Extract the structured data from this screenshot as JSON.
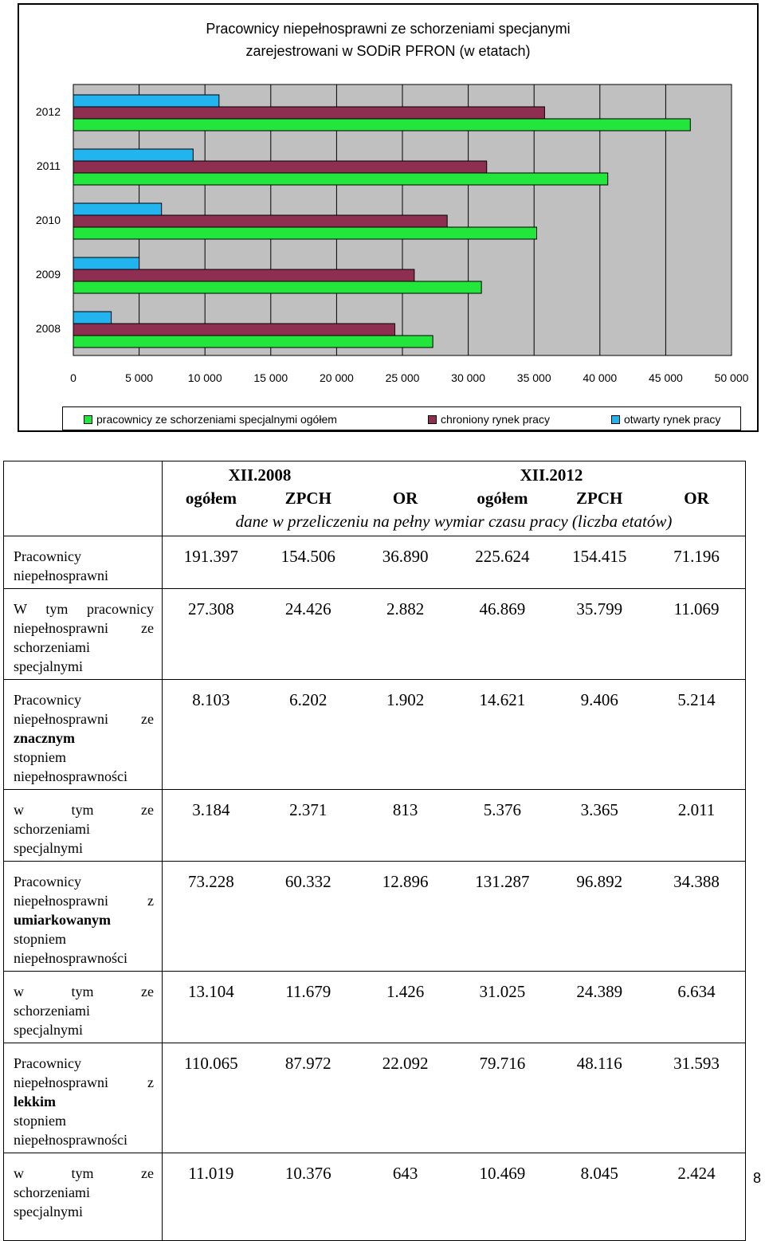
{
  "chart_data": {
    "type": "bar",
    "orientation": "horizontal",
    "title": "Pracownicy niepełnosprawni ze schorzeniami specjanymi zarejestrowani w SODiR PFRON (w etatach)",
    "categories": [
      "2012",
      "2011",
      "2010",
      "2009",
      "2008"
    ],
    "series": [
      {
        "name": "otwarty rynek pracy",
        "color": "#22B4EE",
        "values": [
          11069,
          9100,
          6700,
          5000,
          2882
        ]
      },
      {
        "name": "chroniony rynek pracy",
        "color": "#8E2F52",
        "values": [
          35799,
          31400,
          28400,
          25900,
          24426
        ]
      },
      {
        "name": "pracownicy ze schorzeniami specjalnymi ogółem",
        "color": "#22E63B",
        "values": [
          46869,
          40600,
          35200,
          31000,
          27308
        ]
      }
    ],
    "x_ticks": [
      "0",
      "5 000",
      "10 000",
      "15 000",
      "20 000",
      "25 000",
      "30 000",
      "35 000",
      "40 000",
      "45 000",
      "50 000"
    ],
    "xlim": [
      0,
      50000
    ],
    "plot_background": "#C0C0C0",
    "legend_position": "bottom",
    "legend": [
      {
        "label": "pracownicy ze schorzeniami specjalnymi ogółem",
        "color": "#22E63B"
      },
      {
        "label": "chroniony rynek pracy",
        "color": "#8E2F52"
      },
      {
        "label": "otwarty rynek pracy",
        "color": "#22B4EE"
      }
    ]
  },
  "table": {
    "header": {
      "period1": "XII.2008",
      "period2": "XII.2012",
      "cols": [
        "ogółem",
        "ZPCH",
        "OR",
        "ogółem",
        "ZPCH",
        "OR"
      ],
      "note": "dane w przeliczeniu na pełny wymiar czasu pracy (liczba etatów)"
    },
    "rows": [
      {
        "label": [
          "Pracownicy",
          "niepełnosprawni"
        ],
        "values": [
          "191.397",
          "154.506",
          "36.890",
          "225.624",
          "154.415",
          "71.196"
        ]
      },
      {
        "label": [
          "W tym pracownicy",
          "niepełnosprawni ze",
          "schorzeniami",
          "specjalnymi"
        ],
        "values": [
          "27.308",
          "24.426",
          "2.882",
          "46.869",
          "35.799",
          "11.069"
        ]
      },
      {
        "label": [
          "Pracownicy",
          "niepełnosprawni ze",
          "znacznym",
          "stopniem",
          "niepełnosprawności"
        ],
        "values": [
          "8.103",
          "6.202",
          "1.902",
          "14.621",
          "9.406",
          "5.214"
        ]
      },
      {
        "label": [
          "w tym ze",
          "schorzeniami",
          "specjalnymi"
        ],
        "values": [
          "3.184",
          "2.371",
          "813",
          "5.376",
          "3.365",
          "2.011"
        ]
      },
      {
        "label": [
          "Pracownicy",
          "niepełnosprawni z",
          "umiarkowanym",
          "stopniem",
          "niepełnosprawności"
        ],
        "values": [
          "73.228",
          "60.332",
          "12.896",
          "131.287",
          "96.892",
          "34.388"
        ]
      },
      {
        "label": [
          "w tym ze",
          "schorzeniami",
          "specjalnymi"
        ],
        "values": [
          "13.104",
          "11.679",
          "1.426",
          "31.025",
          "24.389",
          "6.634"
        ]
      },
      {
        "label": [
          "Pracownicy",
          "niepełnosprawni z",
          "lekkim",
          "stopniem",
          "niepełnosprawności"
        ],
        "values": [
          "110.065",
          "87.972",
          "22.092",
          "79.716",
          "48.116",
          "31.593"
        ]
      },
      {
        "label": [
          "w tym ze",
          "schorzeniami",
          "specjalnymi"
        ],
        "values": [
          "11.019",
          "10.376",
          "643",
          "10.469",
          "8.045",
          "2.424"
        ]
      }
    ]
  },
  "page_number": "8"
}
